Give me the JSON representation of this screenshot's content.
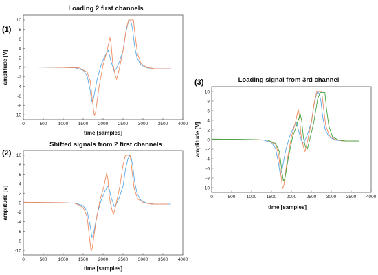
{
  "chart_data": [
    {
      "type": "line",
      "panel_label": "(1)",
      "title": "Loading 2 first channels",
      "xlabel": "time [samples]",
      "ylabel": "amplitude [V]",
      "xlim": [
        0,
        4000
      ],
      "ylim": [
        -11,
        11
      ],
      "xticks": [
        0,
        500,
        1000,
        1500,
        2000,
        2500,
        3000,
        3500,
        4000
      ],
      "yticks": [
        -10,
        -8,
        -6,
        -4,
        -2,
        0,
        2,
        4,
        6,
        8,
        10
      ],
      "grid": false,
      "series": [
        {
          "color": "#5aa9e6",
          "x": [
            0,
            500,
            1000,
            1300,
            1500,
            1600,
            1680,
            1720,
            1760,
            1850,
            1950,
            2050,
            2130,
            2200,
            2280,
            2330,
            2400,
            2500,
            2560,
            2620,
            2660,
            2700,
            2740,
            2790,
            2850,
            2950,
            3100,
            3300,
            3500,
            3700
          ],
          "y": [
            0.1,
            0.05,
            0,
            -0.1,
            -0.6,
            -1.8,
            -5.0,
            -7.3,
            -6.5,
            -2.5,
            0.5,
            2.5,
            3.6,
            1.2,
            -0.8,
            -0.3,
            1.0,
            3.5,
            7.0,
            9.2,
            9.9,
            9.6,
            8.0,
            4.5,
            2.0,
            0.5,
            -0.1,
            -0.3,
            -0.3,
            -0.3
          ]
        },
        {
          "color": "#f08a5d",
          "x": [
            0,
            500,
            1000,
            1400,
            1600,
            1680,
            1740,
            1780,
            1810,
            1900,
            2000,
            2100,
            2170,
            2200,
            2240,
            2300,
            2340,
            2400,
            2500,
            2580,
            2640,
            2680,
            2760,
            2800,
            2860,
            2950,
            3100,
            3300,
            3500,
            3700
          ],
          "y": [
            0.1,
            0.05,
            0,
            -0.1,
            -1.0,
            -3.0,
            -7.5,
            -10.2,
            -9.5,
            -4.0,
            0.5,
            3.5,
            6.3,
            5.0,
            1.0,
            -1.5,
            -2.5,
            -0.5,
            3.5,
            8.0,
            10.0,
            10.0,
            10.0,
            7.0,
            3.0,
            0.8,
            0.0,
            -0.3,
            -0.3,
            -0.3
          ]
        }
      ]
    },
    {
      "type": "line",
      "panel_label": "(2)",
      "title": "Shifted signals from 2 first channels",
      "xlabel": "time [samples]",
      "ylabel": "amplitude [V]",
      "xlim": [
        0,
        4000
      ],
      "ylim": [
        -11,
        11
      ],
      "xticks": [
        0,
        500,
        1000,
        1500,
        2000,
        2500,
        3000,
        3500,
        4000
      ],
      "yticks": [
        -10,
        -8,
        -6,
        -4,
        -2,
        0,
        2,
        4,
        6,
        8,
        10
      ],
      "grid": false,
      "series": [
        {
          "color": "#5aa9e6",
          "x": [
            0,
            500,
            1000,
            1300,
            1500,
            1600,
            1680,
            1720,
            1760,
            1850,
            1950,
            2050,
            2130,
            2200,
            2280,
            2330,
            2400,
            2500,
            2560,
            2620,
            2660,
            2700,
            2740,
            2790,
            2850,
            2950,
            3100,
            3300,
            3500,
            3700
          ],
          "y": [
            0.1,
            0.05,
            0,
            -0.1,
            -0.6,
            -1.8,
            -5.0,
            -7.3,
            -6.5,
            -2.5,
            0.5,
            2.5,
            3.6,
            1.2,
            -0.8,
            -0.3,
            1.0,
            3.5,
            7.0,
            9.2,
            9.9,
            9.6,
            8.0,
            4.5,
            2.0,
            0.5,
            -0.1,
            -0.3,
            -0.3,
            -0.3
          ]
        },
        {
          "color": "#f08a5d",
          "x": [
            0,
            500,
            1000,
            1300,
            1500,
            1600,
            1660,
            1700,
            1730,
            1820,
            1920,
            2020,
            2090,
            2120,
            2160,
            2220,
            2260,
            2320,
            2420,
            2500,
            2560,
            2600,
            2680,
            2720,
            2780,
            2870,
            3020,
            3220,
            3420,
            3620
          ],
          "y": [
            0.1,
            0.05,
            0,
            -0.1,
            -1.0,
            -3.0,
            -7.5,
            -10.2,
            -9.5,
            -4.0,
            0.5,
            3.5,
            6.3,
            5.0,
            1.0,
            -1.5,
            -2.5,
            -0.5,
            3.5,
            8.0,
            10.0,
            10.0,
            10.0,
            7.0,
            3.0,
            0.8,
            0.0,
            -0.3,
            -0.3,
            -0.3
          ]
        }
      ]
    },
    {
      "type": "line",
      "panel_label": "(3)",
      "title": "Loading signal from 3rd channel",
      "xlabel": "time [samples]",
      "ylabel": "amplitude [V]",
      "xlim": [
        0,
        4000
      ],
      "ylim": [
        -11,
        11
      ],
      "xticks": [
        0,
        500,
        1000,
        1500,
        2000,
        2500,
        3000,
        3500,
        4000
      ],
      "yticks": [
        -10,
        -8,
        -6,
        -4,
        -2,
        0,
        2,
        4,
        6,
        8,
        10
      ],
      "grid": false,
      "series": [
        {
          "color": "#5aa9e6",
          "x": [
            0,
            500,
            1000,
            1300,
            1500,
            1600,
            1680,
            1720,
            1760,
            1850,
            1950,
            2050,
            2130,
            2200,
            2280,
            2330,
            2400,
            2500,
            2560,
            2620,
            2660,
            2700,
            2740,
            2790,
            2850,
            2950,
            3100,
            3300,
            3500,
            3700
          ],
          "y": [
            0.1,
            0.05,
            0,
            -0.1,
            -0.6,
            -1.8,
            -5.0,
            -7.3,
            -6.5,
            -2.5,
            0.5,
            2.5,
            3.6,
            1.2,
            -0.8,
            -0.3,
            1.0,
            3.5,
            7.0,
            9.2,
            9.9,
            9.6,
            8.0,
            4.5,
            2.0,
            0.5,
            -0.1,
            -0.3,
            -0.3,
            -0.3
          ]
        },
        {
          "color": "#f08a5d",
          "x": [
            0,
            500,
            1000,
            1400,
            1600,
            1680,
            1740,
            1780,
            1810,
            1900,
            2000,
            2100,
            2170,
            2200,
            2240,
            2300,
            2340,
            2400,
            2500,
            2580,
            2640,
            2680,
            2760,
            2800,
            2860,
            2950,
            3100,
            3300,
            3500,
            3700
          ],
          "y": [
            0.1,
            0.05,
            0,
            -0.1,
            -1.0,
            -3.0,
            -7.5,
            -10.2,
            -9.5,
            -4.0,
            0.5,
            3.5,
            6.3,
            5.0,
            1.0,
            -1.5,
            -2.5,
            -0.5,
            3.5,
            8.0,
            10.0,
            10.0,
            10.0,
            7.0,
            3.0,
            0.8,
            0.0,
            -0.3,
            -0.3,
            -0.3
          ]
        },
        {
          "color": "#3fa33f",
          "x": [
            0,
            500,
            1000,
            1400,
            1600,
            1700,
            1760,
            1800,
            1840,
            1930,
            2030,
            2140,
            2220,
            2260,
            2300,
            2350,
            2400,
            2460,
            2560,
            2660,
            2720,
            2760,
            2840,
            2880,
            2940,
            3030,
            3180,
            3380,
            3580,
            3700
          ],
          "y": [
            0.1,
            0.05,
            0,
            -0.1,
            -0.8,
            -2.5,
            -6.5,
            -8.6,
            -8.0,
            -3.5,
            0.5,
            3.2,
            5.3,
            3.8,
            0.5,
            -1.5,
            -2.0,
            0.0,
            3.5,
            8.5,
            9.8,
            9.8,
            9.8,
            6.5,
            2.8,
            0.6,
            -0.1,
            -0.3,
            -0.3,
            -0.3
          ]
        }
      ]
    }
  ]
}
